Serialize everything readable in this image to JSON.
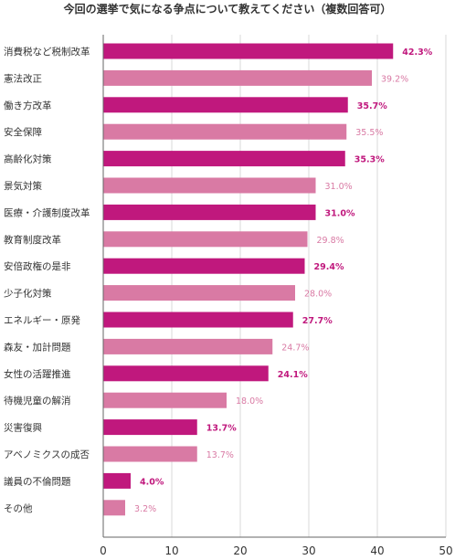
{
  "chart_data": {
    "type": "bar",
    "orientation": "horizontal",
    "title": "今回の選挙で気になる争点について教えてください（複数回答可）",
    "categories": [
      "消費税など税制改革",
      "憲法改正",
      "働き方改革",
      "安全保障",
      "高齢化対策",
      "景気対策",
      "医療・介護制度改革",
      "教育制度改革",
      "安倍政権の是非",
      "少子化対策",
      "エネルギー・原発",
      "森友・加計問題",
      "女性の活躍推進",
      "待機児童の解消",
      "災害復興",
      "アベノミクスの成否",
      "議員の不倫問題",
      "その他"
    ],
    "values": [
      42.3,
      39.2,
      35.7,
      35.5,
      35.3,
      31.0,
      31.0,
      29.8,
      29.4,
      28.0,
      27.7,
      24.7,
      24.1,
      18.0,
      13.7,
      13.7,
      4.0,
      3.2
    ],
    "value_labels": [
      "42.3%",
      "39.2%",
      "35.7%",
      "35.5%",
      "35.3%",
      "31.0%",
      "31.0%",
      "29.8%",
      "29.4%",
      "28.0%",
      "27.7%",
      "24.7%",
      "24.1%",
      "18.0%",
      "13.7%",
      "13.7%",
      "4.0%",
      "3.2%"
    ],
    "xlim": [
      0,
      50
    ],
    "xticks": [
      "0",
      "10",
      "20",
      "30",
      "40",
      "50"
    ],
    "grid": true,
    "legend": false,
    "colors": {
      "dark": "#c0187d",
      "light": "#d97aa4",
      "grid": "#d9d9d9",
      "axis": "#666666"
    }
  }
}
